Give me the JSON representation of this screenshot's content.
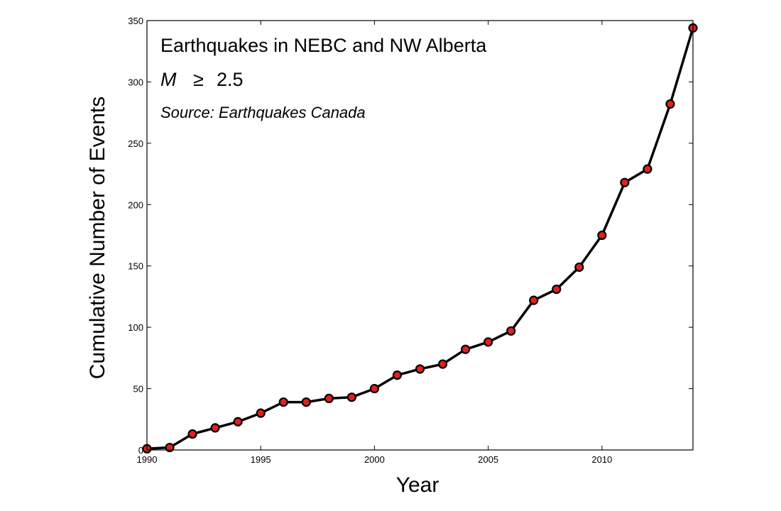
{
  "chart_data": {
    "type": "line",
    "annotations": {
      "title": "Earthquakes in NEBC and NW Alberta",
      "magnitude_symbol": "M",
      "magnitude_relation": "≥",
      "magnitude_value": "2.5",
      "source": "Source: Earthquakes Canada"
    },
    "xlabel": "Year",
    "ylabel": "Cumulative Number of Events",
    "xlim": [
      1990,
      2014
    ],
    "ylim": [
      0,
      350
    ],
    "xticks": [
      1990,
      1995,
      2000,
      2005,
      2010
    ],
    "yticks": [
      0,
      50,
      100,
      150,
      200,
      250,
      300,
      350
    ],
    "grid": false,
    "legend": "none",
    "series": [
      {
        "line_color": "#000000",
        "marker_color": "#e02020",
        "x": [
          1990,
          1991,
          1992,
          1993,
          1994,
          1995,
          1996,
          1997,
          1998,
          1999,
          2000,
          2001,
          2002,
          2003,
          2004,
          2005,
          2006,
          2007,
          2008,
          2009,
          2010,
          2011,
          2012,
          2013,
          2014
        ],
        "y": [
          1,
          2,
          13,
          18,
          23,
          30,
          39,
          39,
          42,
          43,
          50,
          61,
          66,
          70,
          82,
          88,
          97,
          122,
          131,
          149,
          175,
          218,
          229,
          282,
          344
        ]
      }
    ]
  }
}
